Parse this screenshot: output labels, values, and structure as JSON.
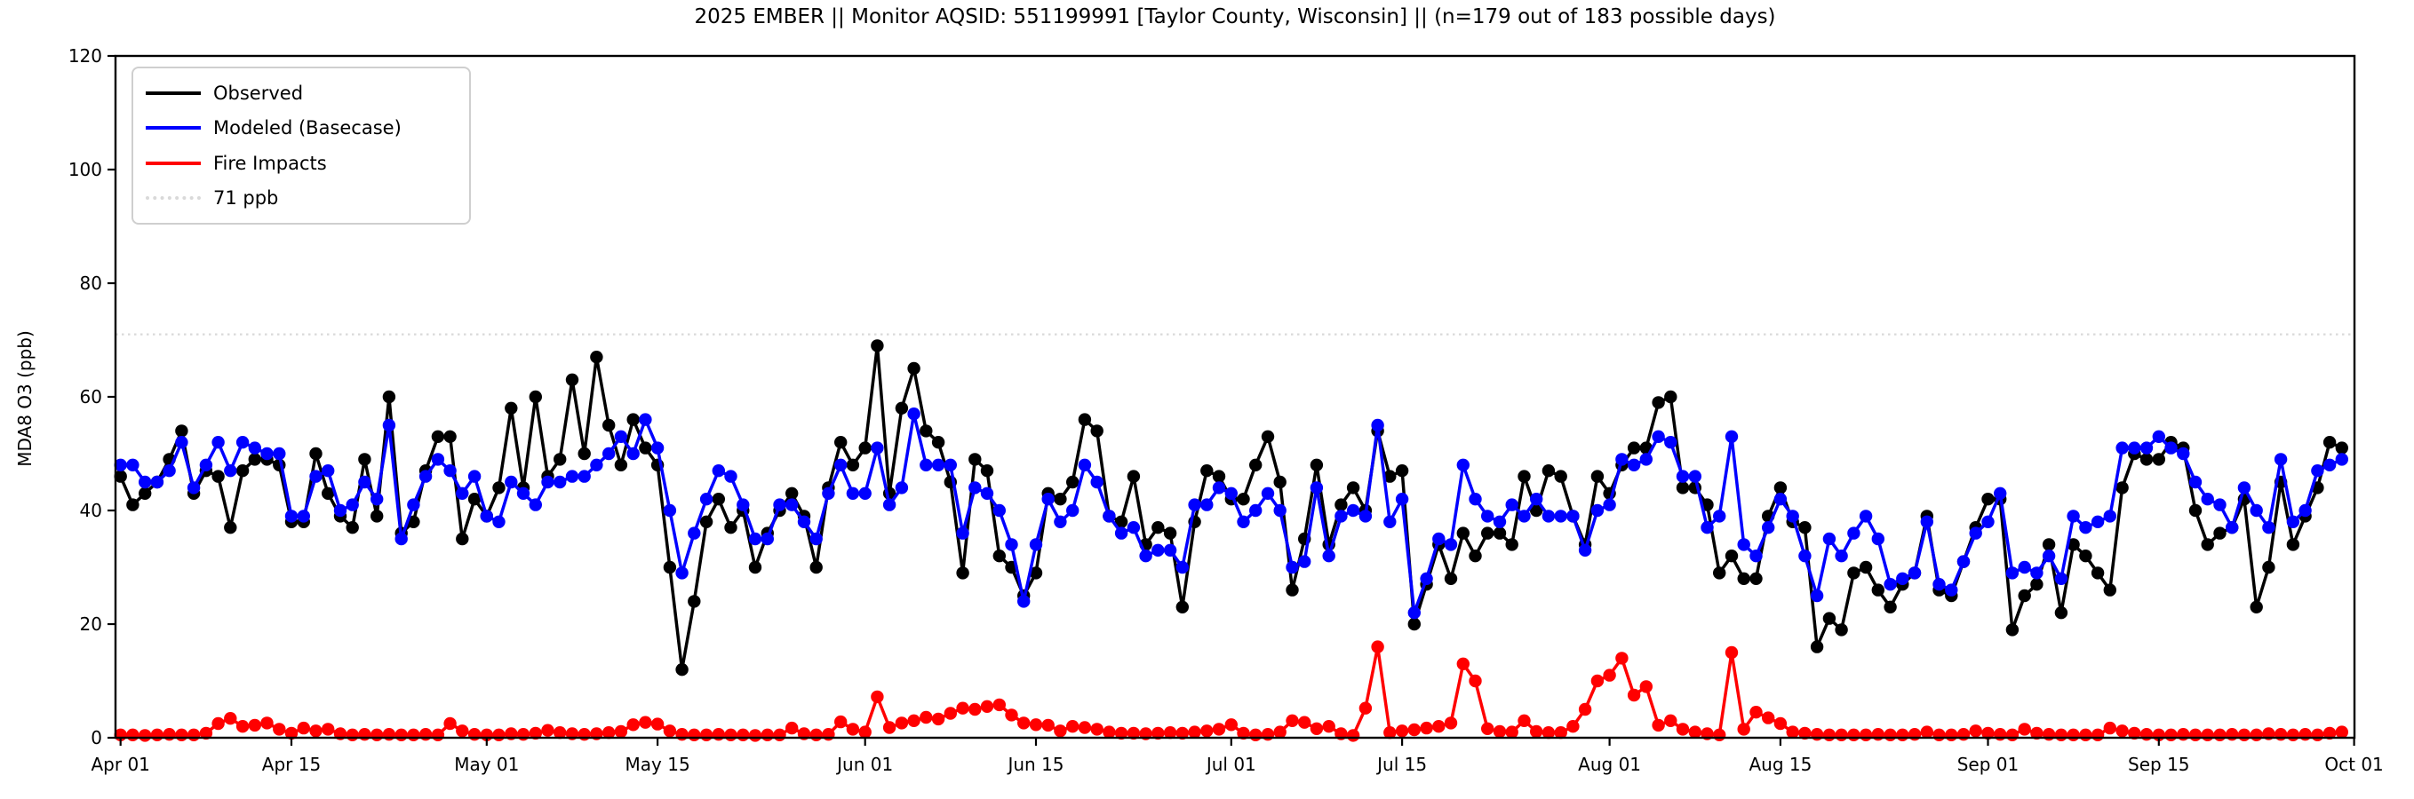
{
  "title": "2025 EMBER || Monitor AQSID: 551199991 [Taylor County, Wisconsin] || (n=179 out of 183 possible days)",
  "axes": {
    "ylabel": "MDA8 O3 (ppb)",
    "yticks": [
      0,
      20,
      40,
      60,
      80,
      100,
      120
    ],
    "xtick_labels": [
      "Apr 01",
      "Apr 15",
      "May 01",
      "May 15",
      "Jun 01",
      "Jun 15",
      "Jul 01",
      "Jul 15",
      "Aug 01",
      "Aug 15",
      "Sep 01",
      "Sep 15",
      "Oct 01"
    ],
    "xtick_day_index": [
      0,
      14,
      30,
      44,
      61,
      75,
      91,
      105,
      122,
      136,
      153,
      167,
      183
    ]
  },
  "legend": {
    "items": [
      {
        "label": "Observed",
        "color": "#000000",
        "style": "solid"
      },
      {
        "label": "Modeled (Basecase)",
        "color": "#0000ff",
        "style": "solid"
      },
      {
        "label": "Fire Impacts",
        "color": "#ff0000",
        "style": "solid"
      },
      {
        "label": "71 ppb",
        "color": "#d9d9d9",
        "style": "dotted"
      }
    ]
  },
  "chart_data": {
    "type": "line",
    "title": "2025 EMBER || Monitor AQSID: 551199991 [Taylor County, Wisconsin] || (n=179 out of 183 possible days)",
    "xlabel": "",
    "ylabel": "MDA8 O3 (ppb)",
    "ylim": [
      0,
      120
    ],
    "x_start_date": "2025-04-01",
    "x_end_date": "2025-09-30",
    "n_days": 183,
    "grid": false,
    "legend_position": "upper left",
    "threshold": {
      "value": 71,
      "label": "71 ppb",
      "color": "#d9d9d9",
      "style": "dotted"
    },
    "series": [
      {
        "name": "Observed",
        "color": "#000000",
        "values": [
          46,
          41,
          43,
          45,
          49,
          54,
          43,
          47,
          46,
          37,
          47,
          49,
          49,
          48,
          38,
          38,
          50,
          43,
          39,
          37,
          49,
          39,
          60,
          36,
          38,
          47,
          53,
          53,
          35,
          42,
          39,
          44,
          58,
          44,
          60,
          46,
          49,
          63,
          50,
          67,
          55,
          48,
          56,
          51,
          48,
          30,
          12,
          24,
          38,
          42,
          37,
          40,
          30,
          36,
          40,
          43,
          39,
          30,
          44,
          52,
          48,
          51,
          69,
          43,
          58,
          65,
          54,
          52,
          45,
          29,
          49,
          47,
          32,
          30,
          25,
          29,
          43,
          42,
          45,
          56,
          54,
          39,
          38,
          46,
          34,
          37,
          36,
          23,
          38,
          47,
          46,
          42,
          42,
          48,
          53,
          45,
          26,
          35,
          48,
          34,
          41,
          44,
          40,
          54,
          46,
          47,
          20,
          27,
          34,
          28,
          36,
          32,
          36,
          36,
          34,
          46,
          40,
          47,
          46,
          39,
          34,
          46,
          43,
          48,
          51,
          51,
          59,
          60,
          44,
          44,
          41,
          29,
          32,
          28,
          28,
          39,
          44,
          38,
          37,
          16,
          21,
          19,
          29,
          30,
          26,
          23,
          27,
          29,
          39,
          26,
          25,
          31,
          37,
          42,
          42,
          19,
          25,
          27,
          34,
          22,
          34,
          32,
          29,
          26,
          44,
          50,
          49,
          49,
          52,
          51,
          40,
          34,
          36,
          37,
          42,
          23,
          30,
          45,
          34,
          39,
          44,
          52,
          51
        ]
      },
      {
        "name": "Modeled (Basecase)",
        "color": "#0000ff",
        "values": [
          48,
          48,
          45,
          45,
          47,
          52,
          44,
          48,
          52,
          47,
          52,
          51,
          50,
          50,
          39,
          39,
          46,
          47,
          40,
          41,
          45,
          42,
          55,
          35,
          41,
          46,
          49,
          47,
          43,
          46,
          39,
          38,
          45,
          43,
          41,
          45,
          45,
          46,
          46,
          48,
          50,
          53,
          50,
          56,
          51,
          40,
          29,
          36,
          42,
          47,
          46,
          41,
          35,
          35,
          41,
          41,
          38,
          35,
          43,
          48,
          43,
          43,
          51,
          41,
          44,
          57,
          48,
          48,
          48,
          36,
          44,
          43,
          40,
          34,
          24,
          34,
          42,
          38,
          40,
          48,
          45,
          39,
          36,
          37,
          32,
          33,
          33,
          30,
          41,
          41,
          44,
          43,
          38,
          40,
          43,
          40,
          30,
          31,
          44,
          32,
          39,
          40,
          39,
          55,
          38,
          42,
          22,
          28,
          35,
          34,
          48,
          42,
          39,
          38,
          41,
          39,
          42,
          39,
          39,
          39,
          33,
          40,
          41,
          49,
          48,
          49,
          53,
          52,
          46,
          46,
          37,
          39,
          53,
          34,
          32,
          37,
          42,
          39,
          32,
          25,
          35,
          32,
          36,
          39,
          35,
          27,
          28,
          29,
          38,
          27,
          26,
          31,
          36,
          38,
          43,
          29,
          30,
          29,
          32,
          28,
          39,
          37,
          38,
          39,
          51,
          51,
          51,
          53,
          51,
          50,
          45,
          42,
          41,
          37,
          44,
          40,
          37,
          49,
          38,
          40,
          47,
          48,
          49
        ]
      },
      {
        "name": "Fire Impacts",
        "color": "#ff0000",
        "values": [
          0.5,
          0.5,
          0.4,
          0.5,
          0.6,
          0.5,
          0.5,
          0.8,
          2.5,
          3.4,
          2.0,
          2.2,
          2.6,
          1.5,
          0.8,
          1.7,
          1.2,
          1.5,
          0.7,
          0.5,
          0.6,
          0.5,
          0.6,
          0.5,
          0.5,
          0.6,
          0.5,
          2.5,
          1.2,
          0.6,
          0.5,
          0.5,
          0.7,
          0.6,
          0.8,
          1.3,
          0.9,
          0.7,
          0.6,
          0.7,
          0.9,
          1.1,
          2.3,
          2.7,
          2.4,
          1.2,
          0.6,
          0.5,
          0.5,
          0.6,
          0.5,
          0.5,
          0.4,
          0.5,
          0.5,
          1.7,
          0.7,
          0.5,
          0.6,
          2.8,
          1.5,
          1.0,
          7.2,
          1.8,
          2.6,
          3.0,
          3.6,
          3.3,
          4.3,
          5.2,
          5.0,
          5.5,
          5.8,
          4.0,
          2.6,
          2.3,
          2.2,
          1.2,
          2.0,
          1.8,
          1.5,
          1.0,
          0.8,
          0.8,
          0.7,
          0.8,
          0.9,
          0.8,
          1.0,
          1.2,
          1.5,
          2.3,
          0.8,
          0.5,
          0.6,
          1.0,
          3.0,
          2.7,
          1.6,
          2.0,
          0.7,
          0.4,
          5.2,
          16.0,
          0.9,
          1.2,
          1.4,
          1.7,
          2.0,
          2.6,
          13.0,
          10.0,
          1.6,
          1.1,
          1.0,
          3.0,
          1.1,
          0.9,
          0.9,
          2.0,
          5.0,
          10.0,
          11.0,
          14.0,
          7.5,
          9.0,
          2.2,
          3.0,
          1.5,
          1.0,
          0.7,
          0.5,
          15.0,
          1.5,
          4.5,
          3.5,
          2.5,
          1.0,
          0.8,
          0.6,
          0.5,
          0.5,
          0.5,
          0.5,
          0.6,
          0.5,
          0.5,
          0.6,
          1.0,
          0.5,
          0.5,
          0.6,
          1.2,
          0.8,
          0.6,
          0.5,
          1.5,
          0.8,
          0.6,
          0.5,
          0.5,
          0.5,
          0.5,
          1.7,
          1.2,
          0.8,
          0.6,
          0.5,
          0.5,
          0.6,
          0.5,
          0.5,
          0.5,
          0.6,
          0.5,
          0.5,
          0.7,
          0.6,
          0.5,
          0.6,
          0.5,
          0.8,
          1.0
        ]
      }
    ]
  }
}
